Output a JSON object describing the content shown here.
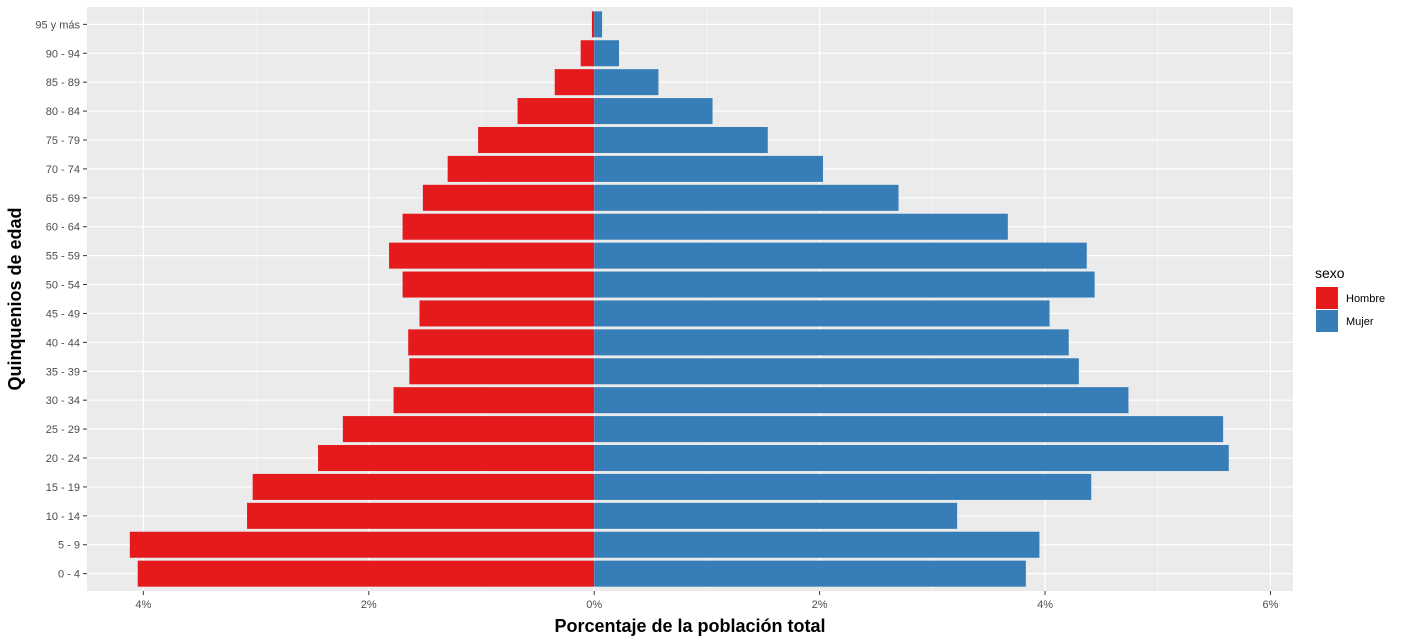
{
  "chart_data": {
    "type": "bar",
    "orientation": "horizontal",
    "layout": "population-pyramid",
    "xlabel": "Porcentaje de la población total",
    "ylabel": "Quinquenios de edad",
    "xlim": [
      -4.5,
      6.2
    ],
    "x_ticks": [
      -4,
      -2,
      0,
      2,
      4,
      6
    ],
    "x_tick_labels": [
      "4%",
      "2%",
      "0%",
      "2%",
      "4%",
      "6%"
    ],
    "grid": true,
    "legend_position": "right",
    "categories": [
      "0 - 4",
      "5 - 9",
      "10 - 14",
      "15 - 19",
      "20 - 24",
      "25 - 29",
      "30 - 34",
      "35 - 39",
      "40 - 44",
      "45 - 49",
      "50 - 54",
      "55 - 59",
      "60 - 64",
      "65 - 69",
      "70 - 74",
      "75 - 79",
      "80 - 84",
      "85 - 89",
      "90 - 94",
      "95 y más"
    ],
    "legend_title": "sexo",
    "series": [
      {
        "name": "Hombre",
        "color": "#E41A1C",
        "values": [
          4.05,
          4.12,
          3.08,
          3.03,
          2.45,
          2.23,
          1.78,
          1.64,
          1.65,
          1.55,
          1.7,
          1.82,
          1.7,
          1.52,
          1.3,
          1.03,
          0.68,
          0.35,
          0.12,
          0.02
        ]
      },
      {
        "name": "Mujer",
        "color": "#377EB8",
        "values": [
          3.83,
          3.95,
          3.22,
          4.41,
          5.63,
          5.58,
          4.74,
          4.3,
          4.21,
          4.04,
          4.44,
          4.37,
          3.67,
          2.7,
          2.03,
          1.54,
          1.05,
          0.57,
          0.22,
          0.07
        ]
      }
    ]
  }
}
